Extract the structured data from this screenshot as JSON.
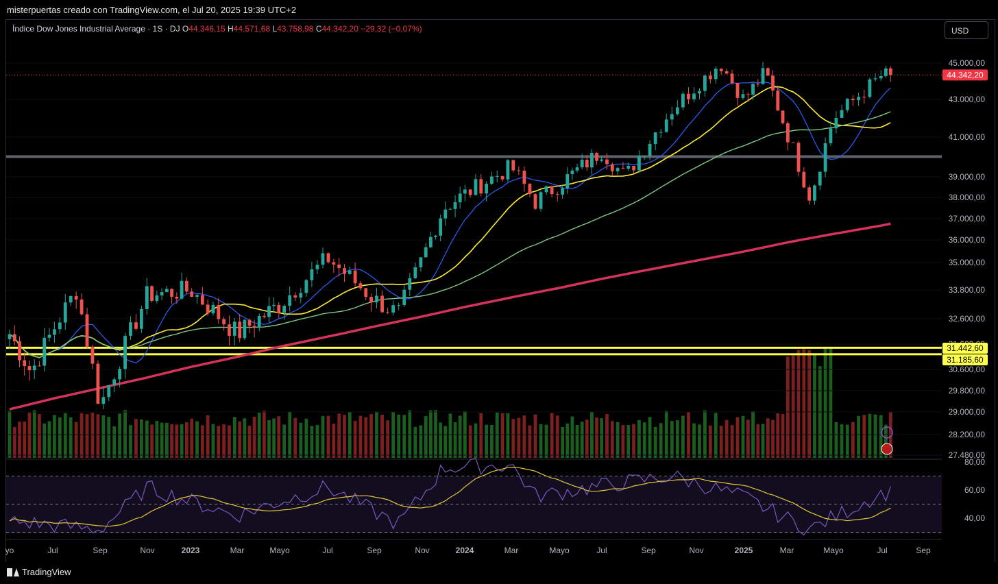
{
  "header": {
    "attribution": "misterpuertas creado con TradingView.com, el Jul 20, 2025 19:39 UTC+2"
  },
  "legend": {
    "symbol": "Índice Dow Jones Industrial Average · 1S · DJ",
    "o_label": "O",
    "o_value": "44.346,15",
    "h_label": "H",
    "h_value": "44.571,68",
    "l_label": "L",
    "l_value": "43.758,98",
    "c_label": "C",
    "c_value": "44.342,20",
    "change": "−29,32 (−0,07%)"
  },
  "currency_button": "USD",
  "brand": "TradingView",
  "colors": {
    "up": "#26a69a",
    "down": "#ef5350",
    "sma_fast": "#2962ff",
    "sma_mid": "#ffeb3b",
    "sma_slow": "#81c784",
    "sma_long": "#d6335c",
    "rsi": "#7e57c2",
    "rsi_ma": "#e5c63a",
    "level": "#ffff4d",
    "price_tag": "#f23645"
  },
  "chart_data": {
    "type": "candlestick",
    "y_axis_ticks": [
      "45.000,00",
      "43.000,00",
      "41.000,00",
      "39.000,00",
      "38.000,00",
      "37.000,00",
      "36.000,00",
      "35.000,00",
      "33.800,00",
      "32.600,00",
      "31.600,00",
      "30.600,00",
      "29.800,00",
      "29.000,00",
      "28.200,00",
      "27.480,00"
    ],
    "y_axis_ticks_num": [
      45000,
      43000,
      41000,
      39000,
      38000,
      37000,
      36000,
      35000,
      33800,
      32600,
      31600,
      30600,
      29800,
      29000,
      28200,
      27480
    ],
    "x_axis_labels": [
      "yo",
      "Jul",
      "Sep",
      "Nov",
      "2023",
      "Mar",
      "Mayo",
      "Jul",
      "Sep",
      "Nov",
      "2024",
      "Mar",
      "Mayo",
      "Jul",
      "Sep",
      "Nov",
      "2025",
      "Mar",
      "Mayo",
      "Jul",
      "Sep"
    ],
    "current_price": "44.342,20",
    "levels": [
      {
        "value": 31442.6,
        "label": "31.442,60"
      },
      {
        "value": 31185.6,
        "label": "31.185,60"
      },
      {
        "value": 40000
      }
    ],
    "key_points": [
      {
        "date": "2022-05",
        "close": 32000
      },
      {
        "date": "2022-06",
        "close": 30500
      },
      {
        "date": "2022-08",
        "close": 33800
      },
      {
        "date": "2022-09",
        "close": 29200
      },
      {
        "date": "2022-11",
        "close": 33600
      },
      {
        "date": "2023-01",
        "close": 33800
      },
      {
        "date": "2023-03",
        "close": 32000
      },
      {
        "date": "2023-05",
        "close": 33200
      },
      {
        "date": "2023-07",
        "close": 35200
      },
      {
        "date": "2023-09",
        "close": 33400
      },
      {
        "date": "2023-10",
        "close": 32800
      },
      {
        "date": "2023-12",
        "close": 37500
      },
      {
        "date": "2024-03",
        "close": 39500
      },
      {
        "date": "2024-04",
        "close": 37800
      },
      {
        "date": "2024-07",
        "close": 40300
      },
      {
        "date": "2024-08",
        "close": 39000
      },
      {
        "date": "2024-10",
        "close": 42500
      },
      {
        "date": "2024-12",
        "close": 45000
      },
      {
        "date": "2025-01",
        "close": 43000
      },
      {
        "date": "2025-02",
        "close": 44500
      },
      {
        "date": "2025-04",
        "close": 38000
      },
      {
        "date": "2025-05",
        "close": 42000
      },
      {
        "date": "2025-07",
        "close": 44342.2
      }
    ],
    "rsi_axis_ticks": [
      "80,00",
      "60,00",
      "40,00"
    ],
    "rsi_axis_ticks_num": [
      80,
      60,
      40
    ],
    "rsi_key_points": [
      {
        "date": "2022-05",
        "rsi": 38
      },
      {
        "date": "2022-09",
        "rsi": 32
      },
      {
        "date": "2022-11",
        "rsi": 62
      },
      {
        "date": "2023-03",
        "rsi": 42
      },
      {
        "date": "2023-07",
        "rsi": 62
      },
      {
        "date": "2023-10",
        "rsi": 36
      },
      {
        "date": "2023-12",
        "rsi": 76
      },
      {
        "date": "2024-03",
        "rsi": 78
      },
      {
        "date": "2024-04",
        "rsi": 56
      },
      {
        "date": "2024-10",
        "rsi": 70
      },
      {
        "date": "2025-01",
        "rsi": 55
      },
      {
        "date": "2025-04",
        "rsi": 32
      },
      {
        "date": "2025-07",
        "rsi": 58
      }
    ]
  }
}
